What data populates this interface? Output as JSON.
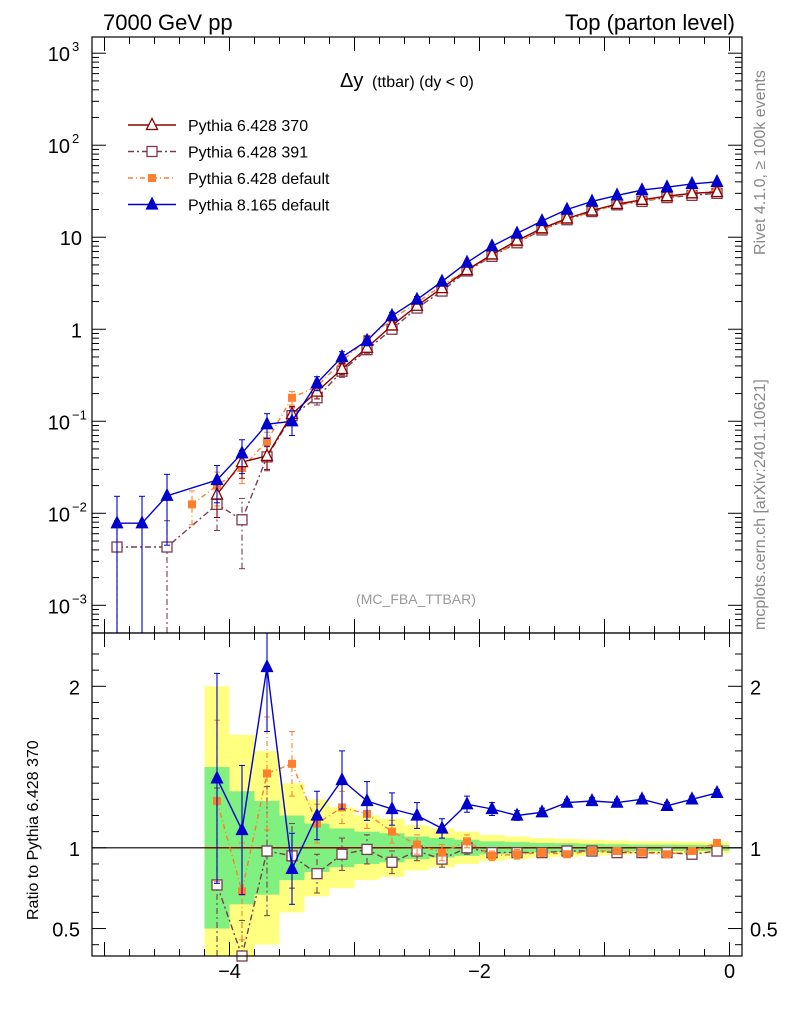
{
  "header": {
    "left": "7000 GeV pp",
    "right": "Top (parton level)"
  },
  "plot_title": {
    "main": "Δy",
    "sub": "(ttbar) (dy < 0)"
  },
  "watermark": "(MC_FBA_TTBAR)",
  "side_text": {
    "rivet": "Rivet 4.1.0, ≥ 100k events",
    "mcplots": "mcplots.cern.ch [arXiv:2401.10621]"
  },
  "ratio_ylabel": "Ratio to Pythia 6.428 370",
  "colors": {
    "p370": "#8b0000",
    "p391": "#7a3b4f",
    "p6def": "#ff7f2a",
    "p8": "#0000cc",
    "band_inner": "#80f080",
    "band_outer": "#ffff80"
  },
  "chart_data": [
    {
      "type": "line",
      "title": "Δy (ttbar) (dy < 0)",
      "yscale": "log",
      "xlim": [
        -5.1,
        0.1
      ],
      "ylim": [
        0.0005,
        1500
      ],
      "yticks": [
        {
          "v": 0.001,
          "b": "10",
          "e": "−3"
        },
        {
          "v": 0.01,
          "b": "10",
          "e": "−2"
        },
        {
          "v": 0.1,
          "b": "10",
          "e": "−1"
        },
        {
          "v": 1,
          "b": "1",
          "e": ""
        },
        {
          "v": 10,
          "b": "10",
          "e": ""
        },
        {
          "v": 100,
          "b": "10",
          "e": "2"
        },
        {
          "v": 1000,
          "b": "10",
          "e": "3"
        }
      ],
      "legend_position": "top-left",
      "series": [
        {
          "key": "p370",
          "name": "Pythia 6.428 370",
          "marker": "open-triangle",
          "dash": "",
          "x": [
            -4.1,
            -3.9,
            -3.7,
            -3.5,
            -3.3,
            -3.1,
            -2.9,
            -2.7,
            -2.5,
            -2.3,
            -2.1,
            -1.9,
            -1.7,
            -1.5,
            -1.3,
            -1.1,
            -0.9,
            -0.7,
            -0.5,
            -0.3,
            -0.1
          ],
          "y": [
            0.016,
            0.036,
            0.042,
            0.12,
            0.21,
            0.37,
            0.63,
            1.1,
            1.8,
            2.8,
            4.4,
            6.5,
            9.2,
            12.5,
            16.0,
            19.5,
            23.0,
            25.5,
            28.0,
            30.0,
            31.0
          ],
          "yerr": [
            0.007,
            0.012,
            0.012,
            0.025,
            0.035,
            0.05,
            0.08,
            0.12,
            0.15,
            0.2,
            0.25,
            0.3,
            0.35,
            0.4,
            0.45,
            0.5,
            0.5,
            0.55,
            0.55,
            0.6,
            0.6
          ]
        },
        {
          "key": "p391",
          "name": "Pythia 6.428 391",
          "marker": "open-square",
          "dash": "6,3,2,3",
          "x": [
            -4.9,
            -4.5,
            -4.1,
            -3.9,
            -3.7,
            -3.5,
            -3.3,
            -3.1,
            -2.9,
            -2.7,
            -2.5,
            -2.3,
            -2.1,
            -1.9,
            -1.7,
            -1.5,
            -1.3,
            -1.1,
            -0.9,
            -0.7,
            -0.5,
            -0.3,
            -0.1
          ],
          "y": [
            0.0043,
            0.0043,
            0.0125,
            0.0085,
            0.041,
            0.115,
            0.18,
            0.35,
            0.6,
            1.0,
            1.7,
            2.6,
            4.3,
            6.2,
            8.7,
            12.0,
            15.5,
            19.0,
            22.5,
            24.5,
            27.0,
            28.5,
            30.0
          ],
          "yerr": [
            0.004,
            0.004,
            0.006,
            0.006,
            0.012,
            0.025,
            0.03,
            0.05,
            0.07,
            0.1,
            0.14,
            0.18,
            0.22,
            0.28,
            0.32,
            0.38,
            0.42,
            0.46,
            0.5,
            0.52,
            0.55,
            0.58,
            0.6
          ]
        },
        {
          "key": "p6def",
          "name": "Pythia 6.428 default",
          "marker": "filled-square",
          "dash": "5,3,1,3",
          "x": [
            -4.3,
            -4.1,
            -3.9,
            -3.7,
            -3.5,
            -3.3,
            -3.1,
            -2.9,
            -2.7,
            -2.5,
            -2.3,
            -2.1,
            -1.9,
            -1.7,
            -1.5,
            -1.3,
            -1.1,
            -0.9,
            -0.7,
            -0.5,
            -0.3,
            -0.1
          ],
          "y": [
            0.0125,
            0.02,
            0.031,
            0.061,
            0.18,
            0.24,
            0.45,
            0.78,
            1.3,
            1.95,
            3.0,
            4.4,
            6.3,
            8.8,
            12.0,
            15.5,
            19.0,
            22.5,
            25.0,
            27.0,
            29.5,
            32.0
          ],
          "yerr": [
            0.005,
            0.008,
            0.01,
            0.015,
            0.03,
            0.04,
            0.06,
            0.08,
            0.11,
            0.15,
            0.19,
            0.24,
            0.29,
            0.34,
            0.39,
            0.43,
            0.47,
            0.5,
            0.53,
            0.56,
            0.58,
            0.6
          ]
        },
        {
          "key": "p8",
          "name": "Pythia 8.165 default",
          "marker": "filled-triangle",
          "dash": "",
          "x": [
            -4.9,
            -4.7,
            -4.5,
            -4.1,
            -3.9,
            -3.7,
            -3.5,
            -3.3,
            -3.1,
            -2.9,
            -2.7,
            -2.5,
            -2.3,
            -2.1,
            -1.9,
            -1.7,
            -1.5,
            -1.3,
            -1.1,
            -0.9,
            -0.7,
            -0.5,
            -0.3,
            -0.1
          ],
          "y": [
            0.0078,
            0.0078,
            0.0155,
            0.023,
            0.045,
            0.093,
            0.1,
            0.26,
            0.5,
            0.75,
            1.4,
            2.1,
            3.3,
            5.3,
            8.0,
            11.0,
            15.0,
            20.0,
            24.5,
            28.5,
            32.5,
            35.0,
            38.0,
            40.0
          ],
          "yerr": [
            0.0075,
            0.0075,
            0.011,
            0.01,
            0.018,
            0.028,
            0.03,
            0.045,
            0.07,
            0.09,
            0.13,
            0.17,
            0.21,
            0.27,
            0.33,
            0.39,
            0.45,
            0.52,
            0.58,
            0.63,
            0.68,
            0.7,
            0.72,
            0.75
          ]
        }
      ]
    },
    {
      "type": "line",
      "title": "Ratio to Pythia 6.428 370",
      "ylabel": "Ratio to Pythia 6.428 370",
      "xlim": [
        -5.1,
        0.1
      ],
      "ylim": [
        0.33,
        2.33
      ],
      "xticks": [
        {
          "v": -4,
          "label": "−4"
        },
        {
          "v": -2,
          "label": "−2"
        },
        {
          "v": 0,
          "label": "0"
        }
      ],
      "yticks": [
        {
          "v": 0.5,
          "label": "0.5"
        },
        {
          "v": 1,
          "label": "1"
        },
        {
          "v": 2,
          "label": "2"
        }
      ],
      "bands": {
        "edges": [
          -4.2,
          -4.0,
          -3.8,
          -3.6,
          -3.4,
          -3.2,
          -3.0,
          -2.8,
          -2.6,
          -2.4,
          -2.2,
          -2.0,
          -1.8,
          -1.6,
          -1.4,
          -1.2,
          -1.0,
          -0.8,
          -0.6,
          -0.4,
          -0.2,
          0.0
        ],
        "inner": [
          0.5,
          0.35,
          0.29,
          0.2,
          0.15,
          0.12,
          0.1,
          0.09,
          0.07,
          0.06,
          0.05,
          0.04,
          0.035,
          0.03,
          0.028,
          0.025,
          0.022,
          0.02,
          0.02,
          0.019,
          0.018
        ],
        "outer": [
          1.0,
          0.7,
          0.6,
          0.4,
          0.3,
          0.25,
          0.2,
          0.18,
          0.14,
          0.12,
          0.1,
          0.08,
          0.07,
          0.06,
          0.055,
          0.05,
          0.045,
          0.04,
          0.04,
          0.038,
          0.036
        ]
      },
      "series": [
        {
          "key": "p391",
          "name": "Pythia 6.428 391",
          "marker": "open-square",
          "dash": "6,3,2,3",
          "x": [
            -4.1,
            -3.9,
            -3.7,
            -3.5,
            -3.3,
            -3.1,
            -2.9,
            -2.7,
            -2.5,
            -2.3,
            -2.1,
            -1.9,
            -1.7,
            -1.5,
            -1.3,
            -1.1,
            -0.9,
            -0.7,
            -0.5,
            -0.3,
            -0.1
          ],
          "y": [
            0.77,
            0.25,
            0.98,
            0.95,
            0.84,
            0.96,
            0.99,
            0.91,
            0.98,
            0.93,
            1.0,
            0.97,
            0.97,
            0.97,
            0.98,
            0.98,
            0.97,
            0.97,
            0.97,
            0.96,
            0.98
          ],
          "yerr": [
            0.6,
            0.3,
            0.4,
            0.2,
            0.12,
            0.1,
            0.09,
            0.07,
            0.06,
            0.05,
            0.04,
            0.03,
            0.03,
            0.025,
            0.02,
            0.02,
            0.02,
            0.02,
            0.02,
            0.02,
            0.02
          ]
        },
        {
          "key": "p6def",
          "name": "Pythia 6.428 default",
          "marker": "filled-square",
          "dash": "5,3,1,3",
          "x": [
            -4.1,
            -3.9,
            -3.7,
            -3.5,
            -3.3,
            -3.1,
            -2.9,
            -2.7,
            -2.5,
            -2.3,
            -2.1,
            -1.9,
            -1.7,
            -1.5,
            -1.3,
            -1.1,
            -0.9,
            -0.7,
            -0.5,
            -0.3,
            -0.1
          ],
          "y": [
            1.29,
            0.73,
            1.46,
            1.52,
            1.15,
            1.25,
            1.21,
            1.1,
            1.02,
            0.97,
            1.04,
            0.95,
            0.96,
            0.97,
            0.96,
            0.98,
            0.98,
            0.97,
            0.96,
            0.98,
            1.03
          ],
          "yerr": [
            0.5,
            0.3,
            0.35,
            0.2,
            0.12,
            0.1,
            0.09,
            0.07,
            0.06,
            0.05,
            0.04,
            0.03,
            0.03,
            0.025,
            0.02,
            0.02,
            0.02,
            0.02,
            0.02,
            0.02,
            0.02
          ]
        },
        {
          "key": "p8",
          "name": "Pythia 8.165 default",
          "marker": "filled-triangle",
          "dash": "",
          "x": [
            -4.1,
            -3.9,
            -3.7,
            -3.5,
            -3.3,
            -3.1,
            -2.9,
            -2.7,
            -2.5,
            -2.3,
            -2.1,
            -1.9,
            -1.7,
            -1.5,
            -1.3,
            -1.1,
            -0.9,
            -0.7,
            -0.5,
            -0.3,
            -0.1
          ],
          "y": [
            1.43,
            1.11,
            2.12,
            0.87,
            1.2,
            1.42,
            1.29,
            1.24,
            1.2,
            1.12,
            1.27,
            1.24,
            1.2,
            1.22,
            1.28,
            1.29,
            1.28,
            1.3,
            1.26,
            1.3,
            1.34
          ],
          "yerr": [
            0.65,
            0.4,
            0.4,
            0.22,
            0.15,
            0.18,
            0.12,
            0.1,
            0.08,
            0.06,
            0.05,
            0.04,
            0.03,
            0.025,
            0.02,
            0.02,
            0.02,
            0.02,
            0.02,
            0.02,
            0.02
          ]
        }
      ]
    }
  ]
}
